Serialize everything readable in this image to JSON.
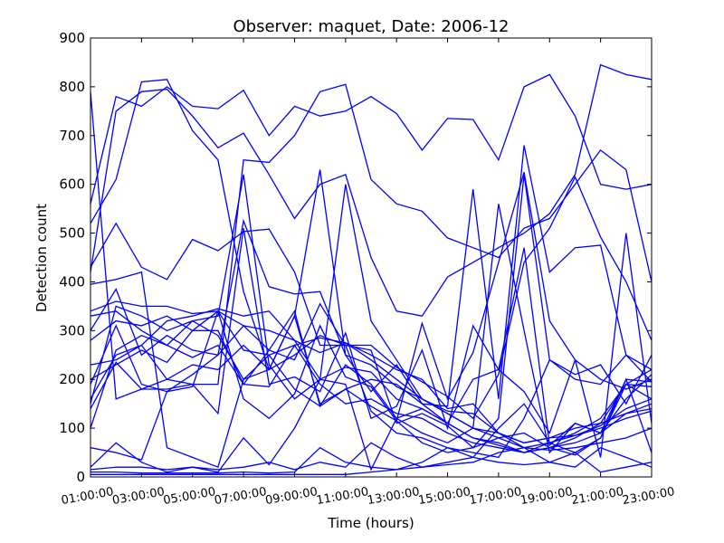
{
  "chart_data": {
    "type": "line",
    "title": "Observer: maquet, Date: 2006-12",
    "xlabel": "Time (hours)",
    "ylabel": "Detection count",
    "xlim": [
      0,
      22
    ],
    "ylim": [
      0,
      900
    ],
    "grid": false,
    "legend": "none",
    "line_color": "#0000ff",
    "x_ticks": [
      {
        "value": 0,
        "label": "01:00:00"
      },
      {
        "value": 2,
        "label": "03:00:00"
      },
      {
        "value": 4,
        "label": "05:00:00"
      },
      {
        "value": 6,
        "label": "07:00:00"
      },
      {
        "value": 8,
        "label": "09:00:00"
      },
      {
        "value": 10,
        "label": "11:00:00"
      },
      {
        "value": 12,
        "label": "13:00:00"
      },
      {
        "value": 14,
        "label": "15:00:00"
      },
      {
        "value": 16,
        "label": "17:00:00"
      },
      {
        "value": 18,
        "label": "19:00:00"
      },
      {
        "value": 20,
        "label": "21:00:00"
      },
      {
        "value": 22,
        "label": "23:00:00"
      }
    ],
    "y_ticks": [
      {
        "value": 0,
        "label": "0"
      },
      {
        "value": 100,
        "label": "100"
      },
      {
        "value": 200,
        "label": "200"
      },
      {
        "value": 300,
        "label": "300"
      },
      {
        "value": 400,
        "label": "400"
      },
      {
        "value": 500,
        "label": "500"
      },
      {
        "value": 600,
        "label": "600"
      },
      {
        "value": 700,
        "label": "700"
      },
      {
        "value": 800,
        "label": "800"
      },
      {
        "value": 900,
        "label": "900"
      }
    ],
    "x": [
      0,
      1,
      2,
      3,
      4,
      5,
      6,
      7,
      8,
      9,
      10,
      11,
      12,
      13,
      14,
      15,
      16,
      17,
      18,
      19,
      20,
      21,
      22
    ],
    "series": [
      {
        "values": [
          520,
          610,
          810,
          815,
          710,
          650,
          380,
          220,
          250,
          290,
          270,
          260,
          110,
          130,
          105,
          60,
          120,
          620,
          240,
          200,
          190,
          250,
          220
        ]
      },
      {
        "values": [
          560,
          780,
          760,
          800,
          760,
          755,
          793,
          700,
          760,
          740,
          750,
          780,
          745,
          670,
          735,
          733,
          650,
          800,
          825,
          740,
          600,
          590,
          600
        ]
      },
      {
        "values": [
          420,
          750,
          790,
          795,
          740,
          675,
          705,
          620,
          530,
          600,
          620,
          450,
          340,
          330,
          410,
          440,
          470,
          500,
          540,
          620,
          845,
          825,
          815
        ]
      },
      {
        "values": [
          790,
          160,
          180,
          200,
          190,
          190,
          650,
          645,
          700,
          790,
          805,
          610,
          560,
          545,
          490,
          470,
          450,
          510,
          530,
          600,
          670,
          630,
          400
        ]
      },
      {
        "values": [
          430,
          520,
          430,
          405,
          487,
          464,
          503,
          508,
          420,
          270,
          270,
          270,
          225,
          195,
          165,
          120,
          210,
          440,
          510,
          615,
          492,
          400,
          280
        ]
      },
      {
        "values": [
          395,
          405,
          420,
          60,
          40,
          20,
          200,
          220,
          330,
          630,
          250,
          175,
          230,
          150,
          145,
          590,
          160,
          680,
          420,
          470,
          475,
          250,
          195
        ]
      },
      {
        "values": [
          280,
          320,
          310,
          330,
          300,
          340,
          260,
          250,
          270,
          285,
          275,
          250,
          220,
          200,
          140,
          150,
          90,
          70,
          80,
          100,
          110,
          130,
          150
        ]
      },
      {
        "values": [
          340,
          360,
          350,
          350,
          335,
          340,
          310,
          300,
          280,
          255,
          275,
          240,
          200,
          160,
          130,
          100,
          80,
          60,
          55,
          60,
          70,
          80,
          100
        ]
      },
      {
        "values": [
          330,
          340,
          300,
          270,
          320,
          330,
          620,
          230,
          160,
          200,
          225,
          215,
          160,
          140,
          110,
          80,
          65,
          50,
          60,
          70,
          90,
          130,
          140
        ]
      },
      {
        "values": [
          300,
          385,
          250,
          290,
          260,
          250,
          525,
          390,
          375,
          380,
          250,
          230,
          185,
          160,
          135,
          130,
          90,
          70,
          80,
          85,
          100,
          120,
          135
        ]
      },
      {
        "values": [
          230,
          240,
          270,
          320,
          330,
          345,
          330,
          340,
          280,
          200,
          600,
          320,
          240,
          160,
          130,
          100,
          90,
          60,
          70,
          85,
          105,
          140,
          160
        ]
      },
      {
        "values": [
          150,
          350,
          330,
          300,
          320,
          290,
          200,
          250,
          180,
          145,
          180,
          200,
          190,
          150,
          110,
          80,
          70,
          50,
          60,
          80,
          110,
          190,
          185
        ]
      },
      {
        "values": [
          100,
          260,
          290,
          270,
          245,
          270,
          190,
          185,
          270,
          190,
          150,
          160,
          130,
          120,
          90,
          70,
          60,
          50,
          70,
          90,
          120,
          190,
          160
        ]
      },
      {
        "values": [
          200,
          230,
          260,
          235,
          300,
          300,
          190,
          260,
          240,
          355,
          270,
          135,
          90,
          80,
          60,
          50,
          40,
          120,
          240,
          210,
          230,
          150,
          250
        ]
      },
      {
        "values": [
          190,
          310,
          190,
          175,
          210,
          250,
          310,
          260,
          340,
          145,
          230,
          190,
          120,
          90,
          70,
          100,
          560,
          300,
          50,
          110,
          90,
          160,
          210
        ]
      },
      {
        "values": [
          160,
          250,
          270,
          200,
          230,
          220,
          270,
          220,
          330,
          150,
          180,
          145,
          115,
          70,
          50,
          60,
          80,
          90,
          60,
          45,
          80,
          190,
          220
        ]
      },
      {
        "values": [
          140,
          235,
          180,
          180,
          190,
          130,
          510,
          190,
          205,
          175,
          295,
          120,
          145,
          260,
          100,
          310,
          220,
          175,
          90,
          240,
          200,
          180,
          200
        ]
      },
      {
        "values": [
          60,
          50,
          35,
          175,
          185,
          340,
          160,
          120,
          170,
          310,
          205,
          185,
          115,
          315,
          160,
          255,
          440,
          625,
          320,
          240,
          40,
          500,
          110
        ]
      },
      {
        "values": [
          20,
          70,
          30,
          10,
          20,
          10,
          80,
          25,
          100,
          200,
          190,
          15,
          120,
          140,
          110,
          200,
          220,
          470,
          65,
          110,
          90,
          200,
          195
        ]
      },
      {
        "values": [
          15,
          20,
          20,
          15,
          20,
          15,
          20,
          30,
          15,
          30,
          20,
          70,
          40,
          20,
          30,
          40,
          100,
          150,
          70,
          50,
          80,
          200,
          50
        ]
      },
      {
        "values": [
          10,
          10,
          8,
          8,
          8,
          8,
          10,
          8,
          10,
          60,
          30,
          20,
          15,
          20,
          25,
          30,
          50,
          60,
          30,
          50,
          10,
          20,
          30
        ]
      },
      {
        "values": [
          5,
          5,
          5,
          5,
          5,
          5,
          5,
          5,
          5,
          5,
          5,
          10,
          15,
          30,
          60,
          40,
          30,
          25,
          30,
          20,
          60,
          40,
          20
        ]
      }
    ]
  }
}
